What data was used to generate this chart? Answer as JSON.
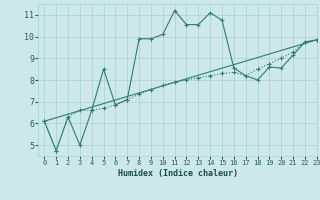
{
  "line1_x": [
    0,
    1,
    2,
    3,
    4,
    5,
    6,
    7,
    8,
    9,
    10,
    11,
    12,
    13,
    14,
    15,
    16,
    17,
    18,
    19,
    20,
    21,
    22,
    23
  ],
  "line1_y": [
    6.1,
    4.75,
    6.3,
    5.0,
    6.6,
    8.5,
    6.85,
    7.1,
    9.9,
    9.9,
    10.1,
    11.2,
    10.55,
    10.55,
    11.1,
    10.75,
    8.55,
    8.2,
    8.0,
    8.6,
    8.55,
    9.15,
    9.75,
    9.85
  ],
  "line2_x": [
    0,
    1,
    2,
    3,
    4,
    5,
    6,
    7,
    8,
    9,
    10,
    11,
    12,
    13,
    14,
    15,
    16,
    17,
    18,
    19,
    20,
    21,
    22,
    23
  ],
  "line2_y": [
    6.1,
    4.75,
    6.3,
    6.6,
    6.6,
    6.7,
    6.85,
    7.1,
    7.35,
    7.55,
    7.75,
    7.9,
    8.0,
    8.1,
    8.2,
    8.3,
    8.35,
    8.2,
    8.5,
    8.75,
    9.0,
    9.3,
    9.75,
    9.85
  ],
  "line3_x": [
    0,
    23
  ],
  "line3_y": [
    6.1,
    9.85
  ],
  "color": "#2e7d6e",
  "bg_color": "#cce8e8",
  "grid_color": "#aacfcf",
  "xlabel": "Humidex (Indice chaleur)",
  "ylim": [
    4.5,
    11.5
  ],
  "xlim": [
    -0.5,
    23
  ],
  "yticks": [
    5,
    6,
    7,
    8,
    9,
    10,
    11
  ],
  "xticks": [
    0,
    1,
    2,
    3,
    4,
    5,
    6,
    7,
    8,
    9,
    10,
    11,
    12,
    13,
    14,
    15,
    16,
    17,
    18,
    19,
    20,
    21,
    22,
    23
  ]
}
